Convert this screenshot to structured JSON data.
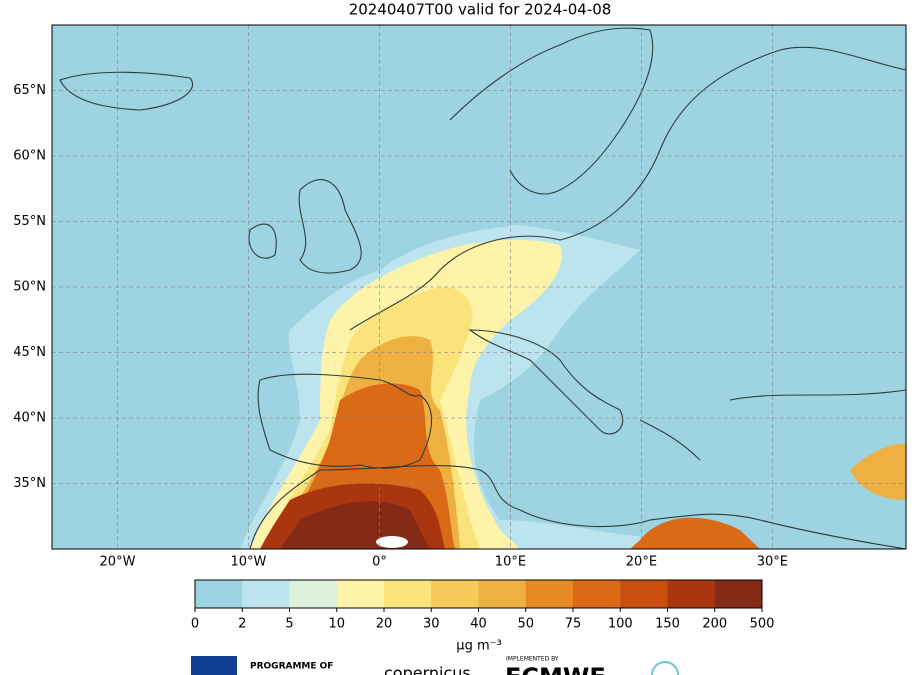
{
  "title": "20240407T00 valid for 2024-04-08",
  "map": {
    "lonlim": [
      -25,
      40.2
    ],
    "latlim": [
      30,
      70
    ],
    "lon_ticks": [
      {
        "value": -20,
        "label": "20°W"
      },
      {
        "value": -10,
        "label": "10°W"
      },
      {
        "value": 0,
        "label": "0°"
      },
      {
        "value": 10,
        "label": "10°E"
      },
      {
        "value": 20,
        "label": "20°E"
      },
      {
        "value": 30,
        "label": "30°E"
      }
    ],
    "lat_ticks": [
      {
        "value": 65,
        "label": "65°N"
      },
      {
        "value": 60,
        "label": "60°N"
      },
      {
        "value": 55,
        "label": "55°N"
      },
      {
        "value": 50,
        "label": "50°N"
      },
      {
        "value": 45,
        "label": "45°N"
      },
      {
        "value": 40,
        "label": "40°N"
      },
      {
        "value": 35,
        "label": "35°N"
      }
    ],
    "grid": true
  },
  "colorbar": {
    "levels": [
      0,
      2,
      5,
      10,
      20,
      30,
      40,
      50,
      75,
      100,
      150,
      200,
      500
    ],
    "colors": [
      "#9ed4e2",
      "#bce4ee",
      "#dcf0dc",
      "#fdf3a9",
      "#fbe37c",
      "#f5c95a",
      "#eeb042",
      "#e68b24",
      "#db6a17",
      "#c84f10",
      "#a9360e",
      "#862a18"
    ],
    "unit_label": "μg m⁻³"
  },
  "logos": {
    "programme": "PROGRAMME OF",
    "implemented": "IMPLEMENTED BY",
    "ecmwf": "ECMWF",
    "copernicus": "copernicus"
  }
}
